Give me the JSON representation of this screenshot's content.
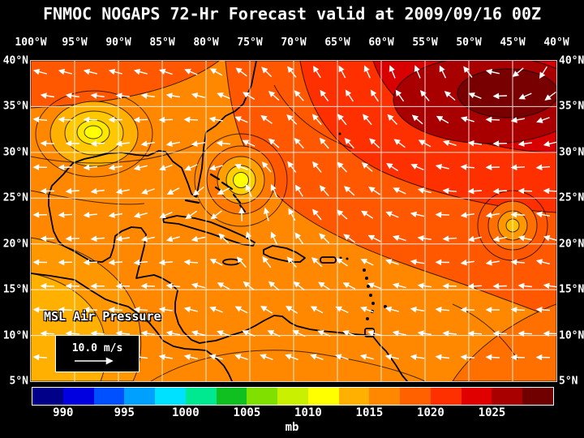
{
  "title": "FNMOC NOGAPS 72-Hr Forecast valid at 2009/09/16 00Z",
  "axes": {
    "lon": [
      "100°W",
      "95°W",
      "90°W",
      "85°W",
      "80°W",
      "75°W",
      "70°W",
      "65°W",
      "60°W",
      "55°W",
      "50°W",
      "45°W",
      "40°W"
    ],
    "lat": [
      "40°N",
      "35°N",
      "30°N",
      "25°N",
      "20°N",
      "15°N",
      "10°N",
      "5°N"
    ]
  },
  "map": {
    "layer_label": "MSL Air Pressure",
    "wind_scale_label": "10.0 m/s"
  },
  "colorbar": {
    "unit": "mb",
    "values": [
      990,
      995,
      1000,
      1005,
      1010,
      1015,
      1020,
      1025
    ],
    "range": [
      987.5,
      1030
    ],
    "colors": [
      "#000088",
      "#0000E0",
      "#0050FF",
      "#00A0FF",
      "#00E0FF",
      "#00E890",
      "#10C020",
      "#80E000",
      "#C8F000",
      "#FFFF00",
      "#FFB000",
      "#FF8800",
      "#FF6000",
      "#FF3000",
      "#E00000",
      "#A80000",
      "#700000"
    ]
  }
}
